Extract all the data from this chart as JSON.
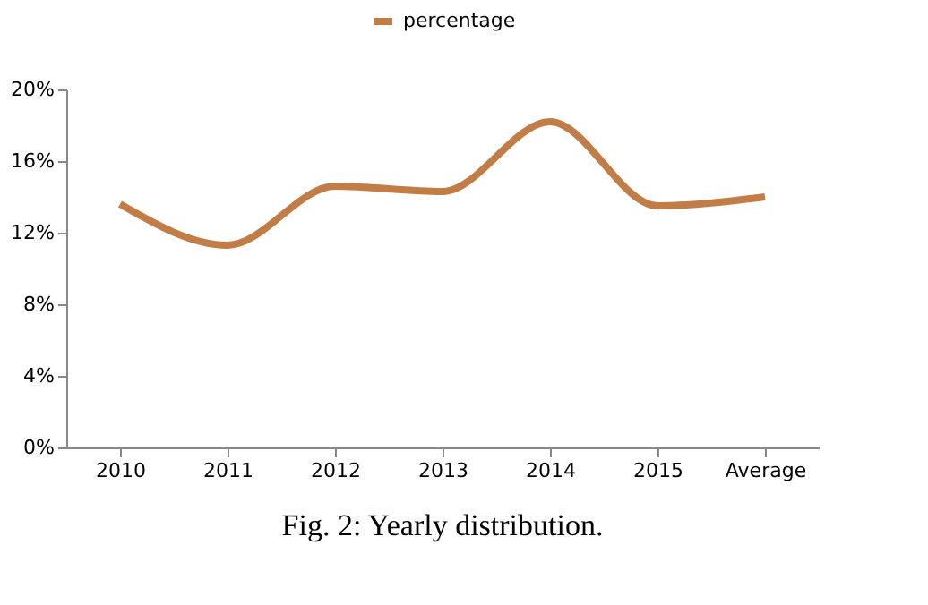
{
  "chart_data": {
    "type": "line",
    "categories": [
      "2010",
      "2011",
      "2012",
      "2013",
      "2014",
      "2015",
      "Average"
    ],
    "series": [
      {
        "name": "percentage",
        "color": "#c27c46",
        "values": [
          13.6,
          11.3,
          14.6,
          14.3,
          18.2,
          13.5,
          14.0
        ]
      }
    ],
    "ylim": [
      0,
      20
    ],
    "yticks": [
      {
        "value": 0,
        "label": "0%"
      },
      {
        "value": 4,
        "label": "4%"
      },
      {
        "value": 8,
        "label": "8%"
      },
      {
        "value": 12,
        "label": "12%"
      },
      {
        "value": 16,
        "label": "16%"
      },
      {
        "value": 20,
        "label": "20%"
      }
    ],
    "grid": false,
    "legend": "top",
    "marker": "none",
    "line_style": "solid",
    "annotations": [
      "Fig. 2: Yearly distribution."
    ]
  }
}
